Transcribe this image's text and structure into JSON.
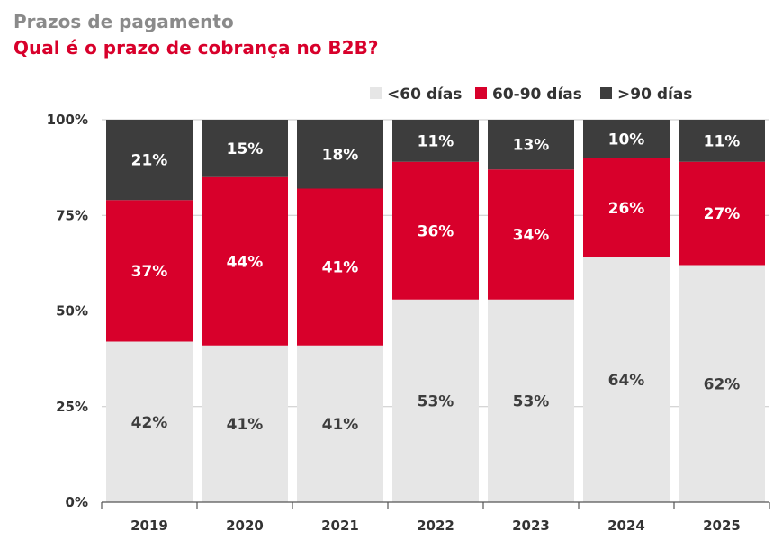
{
  "header": {
    "kicker": "Prazos de pagamento",
    "title": "Qual é o prazo de cobrança no B2B?"
  },
  "chart_data": {
    "type": "bar",
    "stacked": true,
    "categories": [
      "2019",
      "2020",
      "2021",
      "2022",
      "2023",
      "2024",
      "2025"
    ],
    "series": [
      {
        "name": "<60 días",
        "values": [
          42,
          41,
          41,
          53,
          53,
          64,
          62
        ],
        "color": "#e6e6e6",
        "label_color": "#3d3d3d"
      },
      {
        "name": "60-90 días",
        "values": [
          37,
          44,
          41,
          36,
          34,
          26,
          27
        ],
        "color": "#d8002b",
        "label_color": "#ffffff"
      },
      {
        "name": ">90 días",
        "values": [
          21,
          15,
          18,
          11,
          13,
          10,
          11
        ],
        "color": "#3d3d3d",
        "label_color": "#ffffff"
      }
    ],
    "y_ticks": [
      "0%",
      "25%",
      "50%",
      "75%",
      "100%"
    ],
    "ylim": [
      0,
      100
    ],
    "value_suffix": "%",
    "grid": true,
    "legend_position": "top-right"
  }
}
